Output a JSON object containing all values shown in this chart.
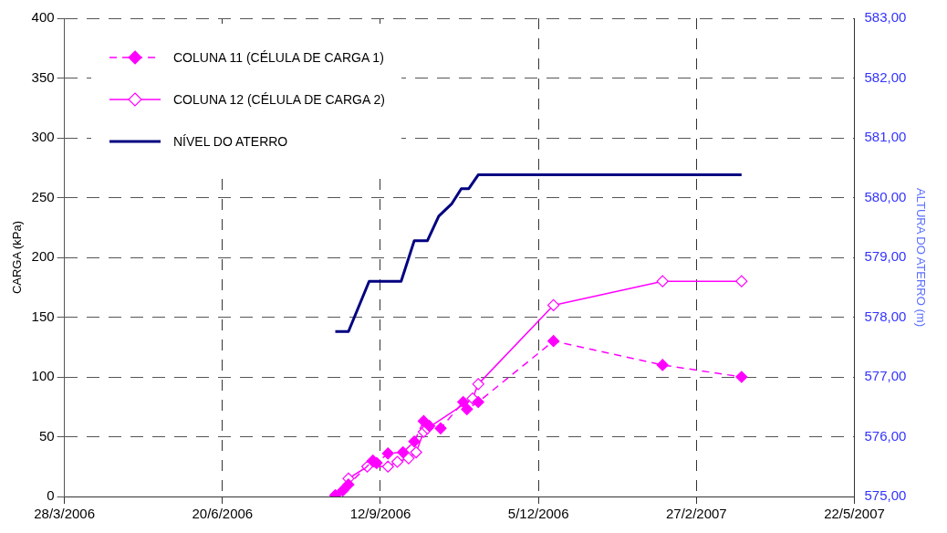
{
  "chart_data": {
    "type": "line",
    "xlabel": null,
    "ylabel": "CARGA (kPa)",
    "y2label": "ALTURA DO ATERRO (m)",
    "xlim": [
      "2006-03-28",
      "2007-05-22"
    ],
    "xticks": [
      {
        "value": "2006-03-28",
        "label": "28/3/2006"
      },
      {
        "value": "2006-06-20",
        "label": "20/6/2006"
      },
      {
        "value": "2006-09-12",
        "label": "12/9/2006"
      },
      {
        "value": "2006-12-05",
        "label": "5/12/2006"
      },
      {
        "value": "2007-02-27",
        "label": "27/2/2007"
      },
      {
        "value": "2007-05-22",
        "label": "22/5/2007"
      }
    ],
    "ylim": [
      0,
      400
    ],
    "yticks": [
      0,
      50,
      100,
      150,
      200,
      250,
      300,
      350,
      400
    ],
    "y2lim": [
      575,
      583
    ],
    "y2ticks": [
      {
        "value": 575,
        "label": "575,00"
      },
      {
        "value": 576,
        "label": "576,00"
      },
      {
        "value": 577,
        "label": "577,00"
      },
      {
        "value": 578,
        "label": "578,00"
      },
      {
        "value": 579,
        "label": "579,00"
      },
      {
        "value": 580,
        "label": "580,00"
      },
      {
        "value": 581,
        "label": "581,00"
      },
      {
        "value": 582,
        "label": "582,00"
      },
      {
        "value": 583,
        "label": "583,00"
      }
    ],
    "grid": true,
    "legend": "top left",
    "series": [
      {
        "name": "COLUNA 11 (CÉLULA DE CARGA 1)",
        "color": "#ff00ff",
        "marker": "diamond",
        "line_style": "dashed",
        "x": [
          "2006-08-19",
          "2006-08-23",
          "2006-08-26",
          "2006-09-08",
          "2006-09-10",
          "2006-09-16",
          "2006-09-24",
          "2006-09-30",
          "2006-10-05",
          "2006-10-08",
          "2006-10-14",
          "2006-10-26",
          "2006-10-28",
          "2006-11-03",
          "2006-12-13",
          "2007-02-09",
          "2007-03-23"
        ],
        "values": [
          1,
          5,
          10,
          30,
          28,
          36,
          37,
          46,
          63,
          59,
          57,
          79,
          73,
          79,
          130,
          110,
          100
        ]
      },
      {
        "name": "COLUNA 12 (CÉLULA DE CARGA 2)",
        "color": "#ff00ff",
        "marker": "diamond",
        "line_style": "solid",
        "x": [
          "2006-08-26",
          "2006-09-05",
          "2006-09-16",
          "2006-09-21",
          "2006-09-27",
          "2006-10-01",
          "2006-10-05",
          "2006-10-07",
          "2006-10-31",
          "2006-11-03",
          "2006-12-13",
          "2007-02-09",
          "2007-03-23"
        ],
        "values": [
          15,
          25,
          25,
          29,
          32,
          37,
          54,
          57,
          82,
          94,
          160,
          180,
          180
        ]
      },
      {
        "name": "NÍVEL DO ATERRO",
        "color": "#000080",
        "marker": "none",
        "line_style": "solid",
        "axis": "y2",
        "x": [
          "2006-08-19",
          "2006-08-26",
          "2006-09-06",
          "2006-09-23",
          "2006-09-30",
          "2006-10-07",
          "2006-10-13",
          "2006-10-20",
          "2006-10-25",
          "2006-10-29",
          "2006-11-03",
          "2007-03-23"
        ],
        "values": [
          577.76,
          577.76,
          578.6,
          578.6,
          579.28,
          579.28,
          579.69,
          579.9,
          580.15,
          580.15,
          580.38,
          580.38
        ]
      }
    ]
  }
}
